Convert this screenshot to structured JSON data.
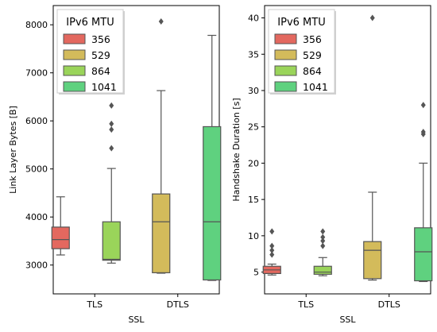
{
  "chart_data": [
    {
      "type": "box",
      "xlabel": "SSL",
      "ylabel": "Link Layer Bytes [B]",
      "categories": [
        "TLS",
        "DTLS"
      ],
      "ylim": [
        2400,
        8400
      ],
      "yticks": [
        3000,
        4000,
        5000,
        6000,
        7000,
        8000
      ],
      "legend": {
        "title": "IPv6 MTU",
        "placement": "top-left"
      },
      "series": [
        {
          "name": "356",
          "color": "#e3685f",
          "boxes": [
            {
              "category": "TLS",
              "whislo": 3210,
              "q1": 3340,
              "med": 3530,
              "q3": 3790,
              "whishi": 4420,
              "fliers": []
            },
            null
          ]
        },
        {
          "name": "529",
          "color": "#d3bb5b",
          "boxes": [
            null,
            {
              "category": "DTLS",
              "whislo": 2830,
              "q1": 2840,
              "med": 3900,
              "q3": 4480,
              "whishi": 6630,
              "fliers": [
                8070
              ]
            }
          ]
        },
        {
          "name": "864",
          "color": "#9ad45a",
          "boxes": [
            {
              "category": "TLS",
              "whislo": 3040,
              "q1": 3100,
              "med": 3120,
              "q3": 3900,
              "whishi": 5010,
              "fliers": [
                5430,
                5820,
                5940,
                6320
              ]
            },
            null
          ]
        },
        {
          "name": "1041",
          "color": "#5fd17f",
          "boxes": [
            null,
            {
              "category": "DTLS",
              "whislo": 2680,
              "q1": 2690,
              "med": 3900,
              "q3": 5880,
              "whishi": 7780,
              "fliers": []
            }
          ]
        }
      ]
    },
    {
      "type": "box",
      "xlabel": "SSL",
      "ylabel": "Handshake Duration [s]",
      "categories": [
        "TLS",
        "DTLS"
      ],
      "ylim": [
        2.0,
        41.7
      ],
      "yticks": [
        5,
        10,
        15,
        20,
        25,
        30,
        35,
        40
      ],
      "legend": {
        "title": "IPv6 MTU",
        "placement": "top-left"
      },
      "series": [
        {
          "name": "356",
          "color": "#e3685f",
          "boxes": [
            {
              "category": "TLS",
              "whislo": 4.6,
              "q1": 4.8,
              "med": 5.3,
              "q3": 5.8,
              "whishi": 6.1,
              "fliers": [
                7.4,
                8.0,
                8.6,
                10.6
              ]
            },
            null
          ]
        },
        {
          "name": "529",
          "color": "#d3bb5b",
          "boxes": [
            null,
            {
              "category": "DTLS",
              "whislo": 3.9,
              "q1": 4.1,
              "med": 8.0,
              "q3": 9.2,
              "whishi": 16.0,
              "fliers": [
                40.0
              ]
            }
          ]
        },
        {
          "name": "864",
          "color": "#9ad45a",
          "boxes": [
            {
              "category": "TLS",
              "whislo": 4.5,
              "q1": 4.7,
              "med": 5.0,
              "q3": 5.8,
              "whishi": 7.0,
              "fliers": [
                8.6,
                9.3,
                9.8,
                10.6
              ]
            },
            null
          ]
        },
        {
          "name": "1041",
          "color": "#5fd17f",
          "boxes": [
            null,
            {
              "category": "DTLS",
              "whislo": 3.7,
              "q1": 3.8,
              "med": 7.8,
              "q3": 11.1,
              "whishi": 20.0,
              "fliers": [
                24.0,
                24.3,
                28.0
              ]
            }
          ]
        }
      ]
    }
  ]
}
